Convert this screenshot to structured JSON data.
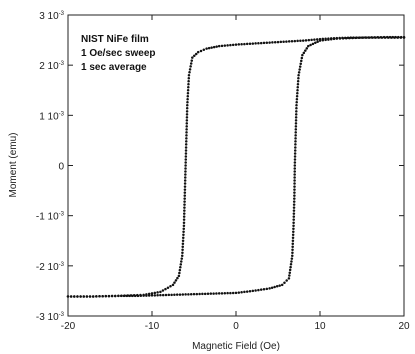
{
  "chart_data": {
    "type": "scatter",
    "xlabel": "Magnetic Field (Oe)",
    "ylabel": "Moment (emu)",
    "xlim": [
      -20,
      20
    ],
    "ylim": [
      -0.003,
      0.003
    ],
    "x_ticks": [
      {
        "value": -20,
        "label": "-20"
      },
      {
        "value": -10,
        "label": "-10"
      },
      {
        "value": 0,
        "label": "0"
      },
      {
        "value": 10,
        "label": "10"
      },
      {
        "value": 20,
        "label": "20"
      }
    ],
    "y_ticks": [
      {
        "value": 0.003,
        "mant": "3 10",
        "exp": "-3"
      },
      {
        "value": 0.002,
        "mant": "2 10",
        "exp": "-3"
      },
      {
        "value": 0.001,
        "mant": "1 10",
        "exp": "-3"
      },
      {
        "value": 0,
        "mant": "0",
        "exp": ""
      },
      {
        "value": -0.001,
        "mant": "-1 10",
        "exp": "-3"
      },
      {
        "value": -0.002,
        "mant": "-2 10",
        "exp": "-3"
      },
      {
        "value": -0.003,
        "mant": "-3 10",
        "exp": "-3"
      }
    ],
    "annotation": [
      "NIST NiFe film",
      "1 Oe/sec sweep",
      "1 sec average"
    ],
    "grid": false,
    "series": [
      {
        "points": [
          [
            20,
            0.00255
          ],
          [
            17,
            0.00255
          ],
          [
            14,
            0.00255
          ],
          [
            12,
            0.00254
          ],
          [
            10,
            0.00252
          ],
          [
            8,
            0.00249
          ],
          [
            6,
            0.00247
          ],
          [
            4,
            0.00245
          ],
          [
            2,
            0.00243
          ],
          [
            0,
            0.00241
          ],
          [
            -2,
            0.00238
          ],
          [
            -3.5,
            0.00233
          ],
          [
            -4.5,
            0.00226
          ],
          [
            -5.2,
            0.00215
          ],
          [
            -5.6,
            0.0018
          ],
          [
            -5.8,
            0.0012
          ],
          [
            -5.9,
            0.0006
          ],
          [
            -6.0,
            0
          ],
          [
            -6.1,
            -0.0006
          ],
          [
            -6.2,
            -0.0012
          ],
          [
            -6.4,
            -0.0018
          ],
          [
            -6.8,
            -0.0022
          ],
          [
            -7.5,
            -0.00238
          ],
          [
            -9,
            -0.00252
          ],
          [
            -11,
            -0.00258
          ],
          [
            -14,
            -0.0026
          ],
          [
            -17,
            -0.00261
          ],
          [
            -20,
            -0.00261
          ]
        ]
      },
      {
        "points": [
          [
            -20,
            -0.00261
          ],
          [
            -17,
            -0.00261
          ],
          [
            -14,
            -0.0026
          ],
          [
            -12,
            -0.0026
          ],
          [
            -10,
            -0.00259
          ],
          [
            -8,
            -0.00258
          ],
          [
            -6,
            -0.00257
          ],
          [
            -4,
            -0.00256
          ],
          [
            -2,
            -0.00255
          ],
          [
            0,
            -0.00254
          ],
          [
            2,
            -0.0025
          ],
          [
            4,
            -0.00245
          ],
          [
            5.5,
            -0.00238
          ],
          [
            6.3,
            -0.00225
          ],
          [
            6.7,
            -0.0018
          ],
          [
            6.85,
            -0.0012
          ],
          [
            6.95,
            -0.0006
          ],
          [
            7.0,
            0
          ],
          [
            7.1,
            0.0006
          ],
          [
            7.2,
            0.0012
          ],
          [
            7.45,
            0.0018
          ],
          [
            7.9,
            0.0022
          ],
          [
            8.6,
            0.00238
          ],
          [
            10,
            0.00249
          ],
          [
            12,
            0.00253
          ],
          [
            15,
            0.00255
          ],
          [
            18,
            0.00256
          ],
          [
            20,
            0.00256
          ]
        ]
      }
    ]
  }
}
